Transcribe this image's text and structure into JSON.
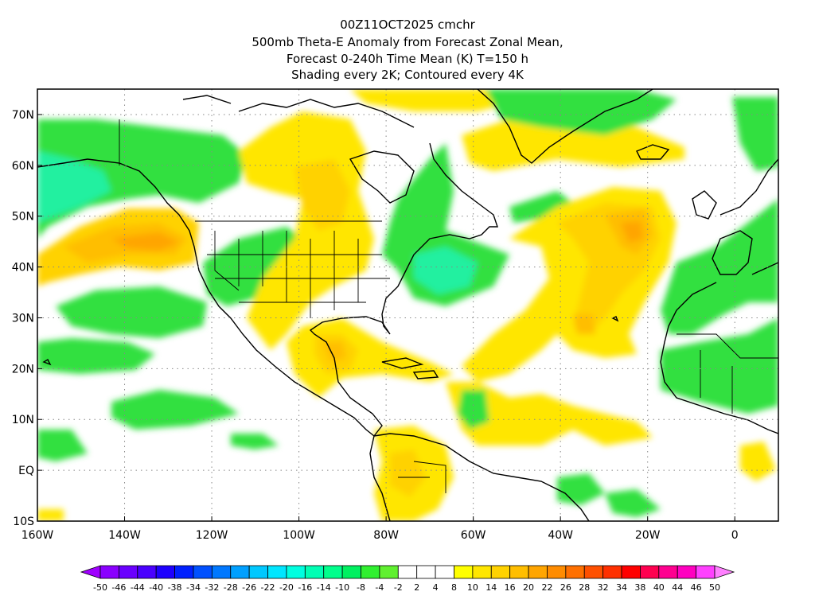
{
  "header": {
    "title_lines": [
      "00Z11OCT2025 cmchr",
      "500mb Theta-E Anomaly from Forecast Zonal Mean,",
      "Forecast 0-240h Time Mean (K) T=150 h",
      "Shading every 2K; Contoured every 4K"
    ]
  },
  "map": {
    "projection": "cylindrical equidistant",
    "lon_range": [
      -160,
      10
    ],
    "lat_range": [
      -10,
      75
    ],
    "lat_ticks": [
      {
        "value": 70,
        "label": "70N"
      },
      {
        "value": 60,
        "label": "60N"
      },
      {
        "value": 50,
        "label": "50N"
      },
      {
        "value": 40,
        "label": "40N"
      },
      {
        "value": 30,
        "label": "30N"
      },
      {
        "value": 20,
        "label": "20N"
      },
      {
        "value": 10,
        "label": "10N"
      },
      {
        "value": 0,
        "label": "EQ"
      },
      {
        "value": -10,
        "label": "10S"
      }
    ],
    "lon_ticks": [
      {
        "value": -160,
        "label": "160W"
      },
      {
        "value": -140,
        "label": "140W"
      },
      {
        "value": -120,
        "label": "120W"
      },
      {
        "value": -100,
        "label": "100W"
      },
      {
        "value": -80,
        "label": "80W"
      },
      {
        "value": -60,
        "label": "60W"
      },
      {
        "value": -40,
        "label": "40W"
      },
      {
        "value": -20,
        "label": "20W"
      },
      {
        "value": 0,
        "label": "0"
      }
    ],
    "grid": "dotted"
  },
  "colorbar": {
    "labels": [
      "-50",
      "-46",
      "-44",
      "-40",
      "-38",
      "-34",
      "-32",
      "-28",
      "-26",
      "-22",
      "-20",
      "-16",
      "-14",
      "-10",
      "-8",
      "-4",
      "-2",
      "2",
      "4",
      "8",
      "10",
      "14",
      "16",
      "20",
      "22",
      "26",
      "28",
      "32",
      "34",
      "38",
      "40",
      "44",
      "46",
      "50"
    ],
    "colors": [
      "#a000ff",
      "#8a00ff",
      "#6a00ff",
      "#4a00ff",
      "#1e00ff",
      "#0020ff",
      "#0050ff",
      "#0078ff",
      "#00a0ff",
      "#00c8ff",
      "#00e6ff",
      "#00ffe0",
      "#00ffb4",
      "#00ff8c",
      "#00f060",
      "#30f030",
      "#60f030",
      "#ffffff",
      "#ffffff",
      "#ffffff",
      "#ffff00",
      "#ffe600",
      "#ffd200",
      "#ffbe00",
      "#ffa500",
      "#ff8c00",
      "#ff7000",
      "#ff5000",
      "#ff3000",
      "#ff0000",
      "#ff0050",
      "#ff0090",
      "#ff00c0",
      "#ff40ff",
      "#ff80ff"
    ]
  }
}
